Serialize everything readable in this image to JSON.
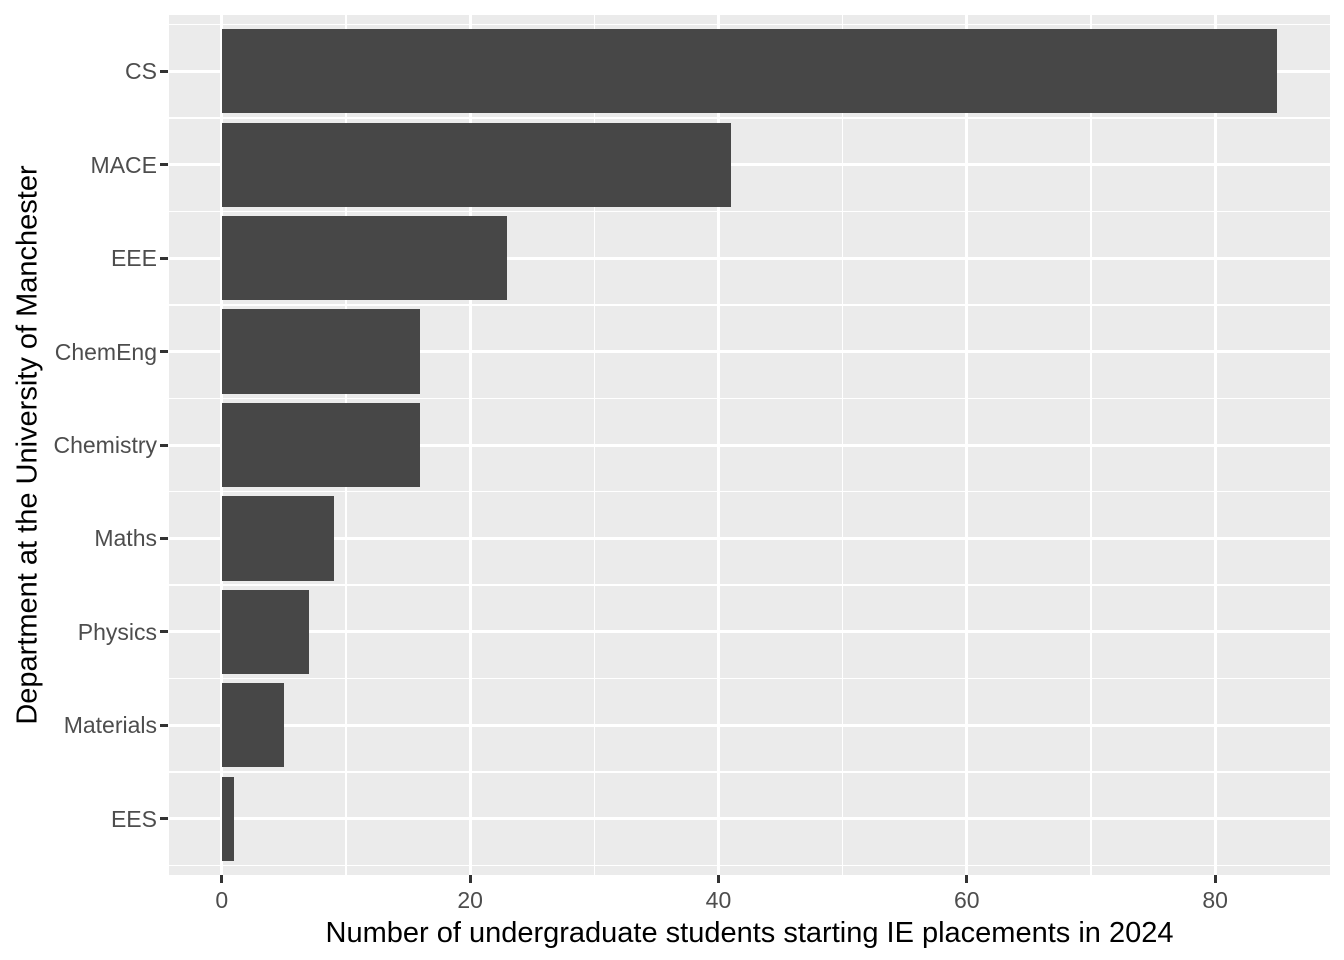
{
  "chart_data": {
    "type": "bar",
    "orientation": "horizontal",
    "title": "",
    "xlabel": "Number of undergraduate students starting IE placements in 2024",
    "ylabel": "Department at the University of Manchester",
    "categories": [
      "CS",
      "MACE",
      "EEE",
      "ChemEng",
      "Chemistry",
      "Maths",
      "Physics",
      "Materials",
      "EES"
    ],
    "values": [
      85,
      41,
      23,
      16,
      16,
      9,
      7,
      5,
      1
    ],
    "x_ticks": [
      0,
      20,
      40,
      60,
      80
    ],
    "x_minor_ticks": [
      10,
      30,
      50,
      70
    ],
    "xlim": [
      -4.25,
      89.25
    ],
    "band_range": [
      0.4,
      9.6
    ],
    "bar_width_fraction": 0.9,
    "grid": true,
    "legend": "none",
    "colors": {
      "bar": "#474747",
      "panel_background": "#ebebeb",
      "grid_major": "#ffffff",
      "grid_minor": "#ffffff",
      "tick_label": "#4d4d4d",
      "axis_title": "#000000",
      "tick_mark": "#333333"
    }
  }
}
